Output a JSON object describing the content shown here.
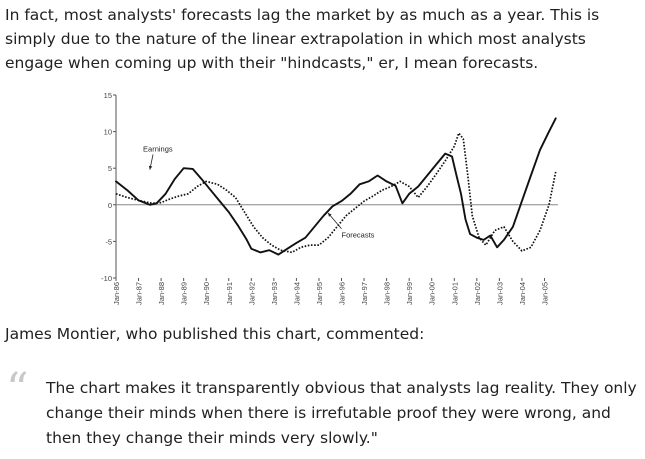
{
  "intro_text": "In fact, most analysts' forecasts lag the market by as much as a year. This is simply due to the nature of the linear extrapolation in which most analysts engage when coming up with their \"hindcasts,\" er, I mean forecasts.",
  "caption_text": "James Montier, who published this chart, commented:",
  "quote": {
    "mark": "“",
    "text": "The chart makes it transparently obvious that analysts lag reality. They only change their minds when there is irrefutable proof they were wrong, and then they change their minds very slowly.\""
  },
  "chart_data": {
    "type": "line",
    "title": "",
    "xlabel": "",
    "ylabel": "",
    "ylim": [
      -10,
      15
    ],
    "xlim": [
      1986,
      2005.6
    ],
    "y_ticks": [
      15,
      10,
      5,
      0,
      -5,
      -10
    ],
    "x_tick_labels": [
      "Jan-86",
      "Jan-87",
      "Jan-88",
      "Jan-89",
      "Jan-90",
      "Jan-91",
      "Jan-92",
      "Jan-93",
      "Jan-94",
      "Jan-95",
      "Jan-96",
      "Jan-97",
      "Jan-98",
      "Jan-99",
      "Jan-00",
      "Jan-01",
      "Jan-02",
      "Jan-03",
      "Jan-04",
      "Jan-05"
    ],
    "grid": false,
    "legend": "none",
    "annotations": [
      {
        "text": "Earnings",
        "x": 1987.2,
        "y": 7.3,
        "arrow_to": [
          1987.5,
          4.8
        ]
      },
      {
        "text": "Forecasts",
        "x": 1996.0,
        "y": -4.5,
        "arrow_to": [
          1995.4,
          -1.1
        ]
      }
    ],
    "series": [
      {
        "name": "Earnings",
        "style": "solid",
        "points": [
          [
            1986.0,
            3.2
          ],
          [
            1986.5,
            2.0
          ],
          [
            1987.0,
            0.6
          ],
          [
            1987.5,
            0.0
          ],
          [
            1987.8,
            0.2
          ],
          [
            1988.2,
            1.5
          ],
          [
            1988.6,
            3.5
          ],
          [
            1989.0,
            5.0
          ],
          [
            1989.4,
            4.9
          ],
          [
            1989.8,
            3.5
          ],
          [
            1990.2,
            2.0
          ],
          [
            1990.6,
            0.5
          ],
          [
            1991.0,
            -1.0
          ],
          [
            1991.4,
            -2.8
          ],
          [
            1991.8,
            -4.8
          ],
          [
            1992.0,
            -6.0
          ],
          [
            1992.4,
            -6.5
          ],
          [
            1992.8,
            -6.2
          ],
          [
            1993.2,
            -6.8
          ],
          [
            1993.6,
            -6.0
          ],
          [
            1994.0,
            -5.2
          ],
          [
            1994.4,
            -4.5
          ],
          [
            1994.8,
            -3.0
          ],
          [
            1995.2,
            -1.5
          ],
          [
            1995.6,
            -0.2
          ],
          [
            1996.0,
            0.5
          ],
          [
            1996.4,
            1.5
          ],
          [
            1996.8,
            2.8
          ],
          [
            1997.2,
            3.2
          ],
          [
            1997.6,
            4.0
          ],
          [
            1998.0,
            3.2
          ],
          [
            1998.4,
            2.6
          ],
          [
            1998.7,
            0.2
          ],
          [
            1999.0,
            1.5
          ],
          [
            1999.4,
            2.5
          ],
          [
            1999.8,
            4.0
          ],
          [
            2000.2,
            5.5
          ],
          [
            2000.6,
            7.0
          ],
          [
            2000.9,
            6.6
          ],
          [
            2001.1,
            4.0
          ],
          [
            2001.3,
            1.5
          ],
          [
            2001.5,
            -2.0
          ],
          [
            2001.7,
            -4.0
          ],
          [
            2002.0,
            -4.5
          ],
          [
            2002.3,
            -4.8
          ],
          [
            2002.6,
            -4.2
          ],
          [
            2002.9,
            -5.8
          ],
          [
            2003.2,
            -4.8
          ],
          [
            2003.6,
            -3.0
          ],
          [
            2004.0,
            0.5
          ],
          [
            2004.4,
            4.0
          ],
          [
            2004.8,
            7.5
          ],
          [
            2005.2,
            10.0
          ],
          [
            2005.5,
            11.8
          ]
        ]
      },
      {
        "name": "Forecasts",
        "style": "dotted",
        "points": [
          [
            1986.0,
            1.5
          ],
          [
            1986.5,
            1.0
          ],
          [
            1987.0,
            0.6
          ],
          [
            1987.6,
            0.2
          ],
          [
            1988.0,
            0.3
          ],
          [
            1988.4,
            0.8
          ],
          [
            1988.8,
            1.2
          ],
          [
            1989.2,
            1.5
          ],
          [
            1989.6,
            2.5
          ],
          [
            1990.0,
            3.2
          ],
          [
            1990.5,
            2.8
          ],
          [
            1990.9,
            2.0
          ],
          [
            1991.3,
            1.0
          ],
          [
            1991.7,
            -1.0
          ],
          [
            1992.1,
            -3.0
          ],
          [
            1992.5,
            -4.5
          ],
          [
            1992.9,
            -5.5
          ],
          [
            1993.3,
            -6.2
          ],
          [
            1993.8,
            -6.5
          ],
          [
            1994.2,
            -5.8
          ],
          [
            1994.6,
            -5.5
          ],
          [
            1995.0,
            -5.5
          ],
          [
            1995.4,
            -4.5
          ],
          [
            1995.8,
            -3.0
          ],
          [
            1996.2,
            -1.5
          ],
          [
            1996.6,
            -0.5
          ],
          [
            1997.0,
            0.5
          ],
          [
            1997.4,
            1.2
          ],
          [
            1997.8,
            2.0
          ],
          [
            1998.2,
            2.5
          ],
          [
            1998.6,
            3.2
          ],
          [
            1999.0,
            2.5
          ],
          [
            1999.4,
            1.0
          ],
          [
            1999.8,
            2.5
          ],
          [
            2000.2,
            4.2
          ],
          [
            2000.6,
            6.0
          ],
          [
            2001.0,
            8.0
          ],
          [
            2001.2,
            9.8
          ],
          [
            2001.4,
            9.0
          ],
          [
            2001.6,
            4.0
          ],
          [
            2001.8,
            -1.5
          ],
          [
            2002.1,
            -4.5
          ],
          [
            2002.4,
            -5.5
          ],
          [
            2002.8,
            -3.5
          ],
          [
            2003.2,
            -3.0
          ],
          [
            2003.6,
            -5.0
          ],
          [
            2004.0,
            -6.3
          ],
          [
            2004.4,
            -5.8
          ],
          [
            2004.8,
            -3.5
          ],
          [
            2005.2,
            0.0
          ],
          [
            2005.5,
            4.5
          ]
        ]
      }
    ]
  }
}
